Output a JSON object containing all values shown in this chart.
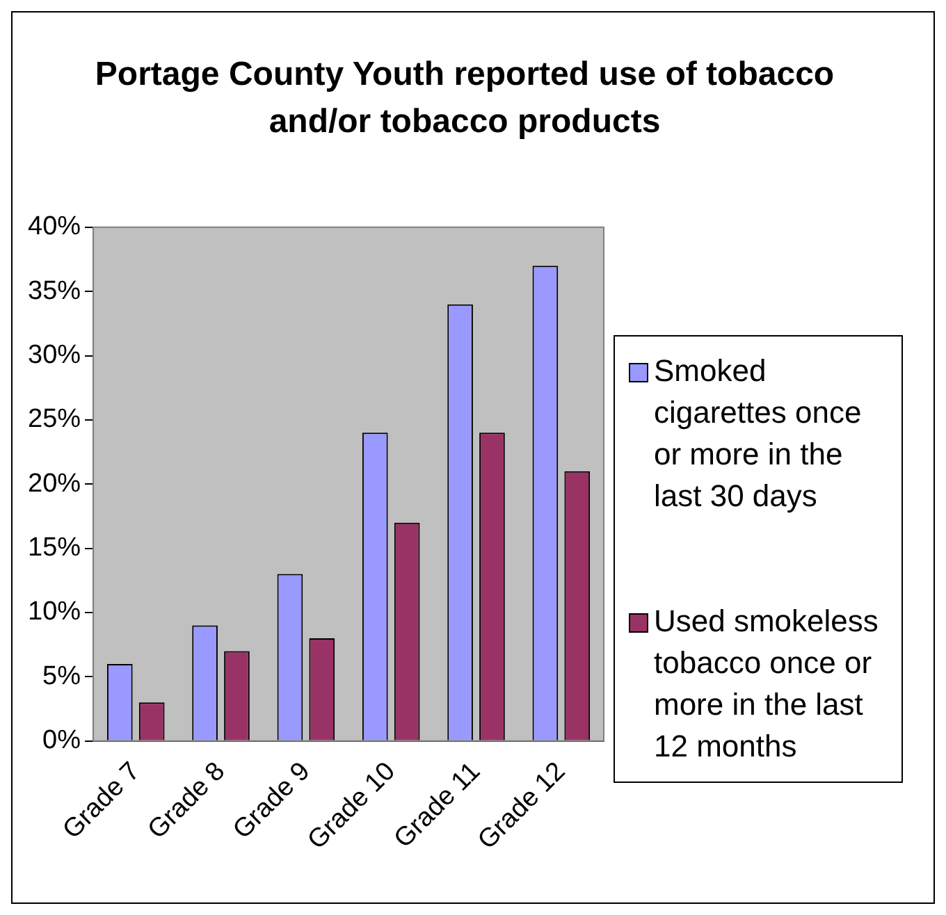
{
  "chart_data": {
    "type": "bar",
    "title": "Portage County Youth reported use of tobacco and/or tobacco products",
    "categories": [
      "Grade 7",
      "Grade 8",
      "Grade 9",
      "Grade 10",
      "Grade 11",
      "Grade 12"
    ],
    "series": [
      {
        "name": "Smoked cigarettes once or more in the last 30 days",
        "color": "#9999ff",
        "values": [
          6,
          9,
          13,
          24,
          34,
          37
        ]
      },
      {
        "name": "Used smokeless tobacco once or more in the last 12 months",
        "color": "#993366",
        "values": [
          3,
          7,
          8,
          17,
          24,
          21
        ]
      }
    ],
    "ylim": [
      0,
      40
    ],
    "yticks": [
      {
        "value": 0,
        "label": "0%"
      },
      {
        "value": 5,
        "label": "5%"
      },
      {
        "value": 10,
        "label": "10%"
      },
      {
        "value": 15,
        "label": "15%"
      },
      {
        "value": 20,
        "label": "20%"
      },
      {
        "value": 25,
        "label": "25%"
      },
      {
        "value": 30,
        "label": "30%"
      },
      {
        "value": 35,
        "label": "35%"
      },
      {
        "value": 40,
        "label": "40%"
      }
    ],
    "grid": false,
    "legend": "right"
  }
}
